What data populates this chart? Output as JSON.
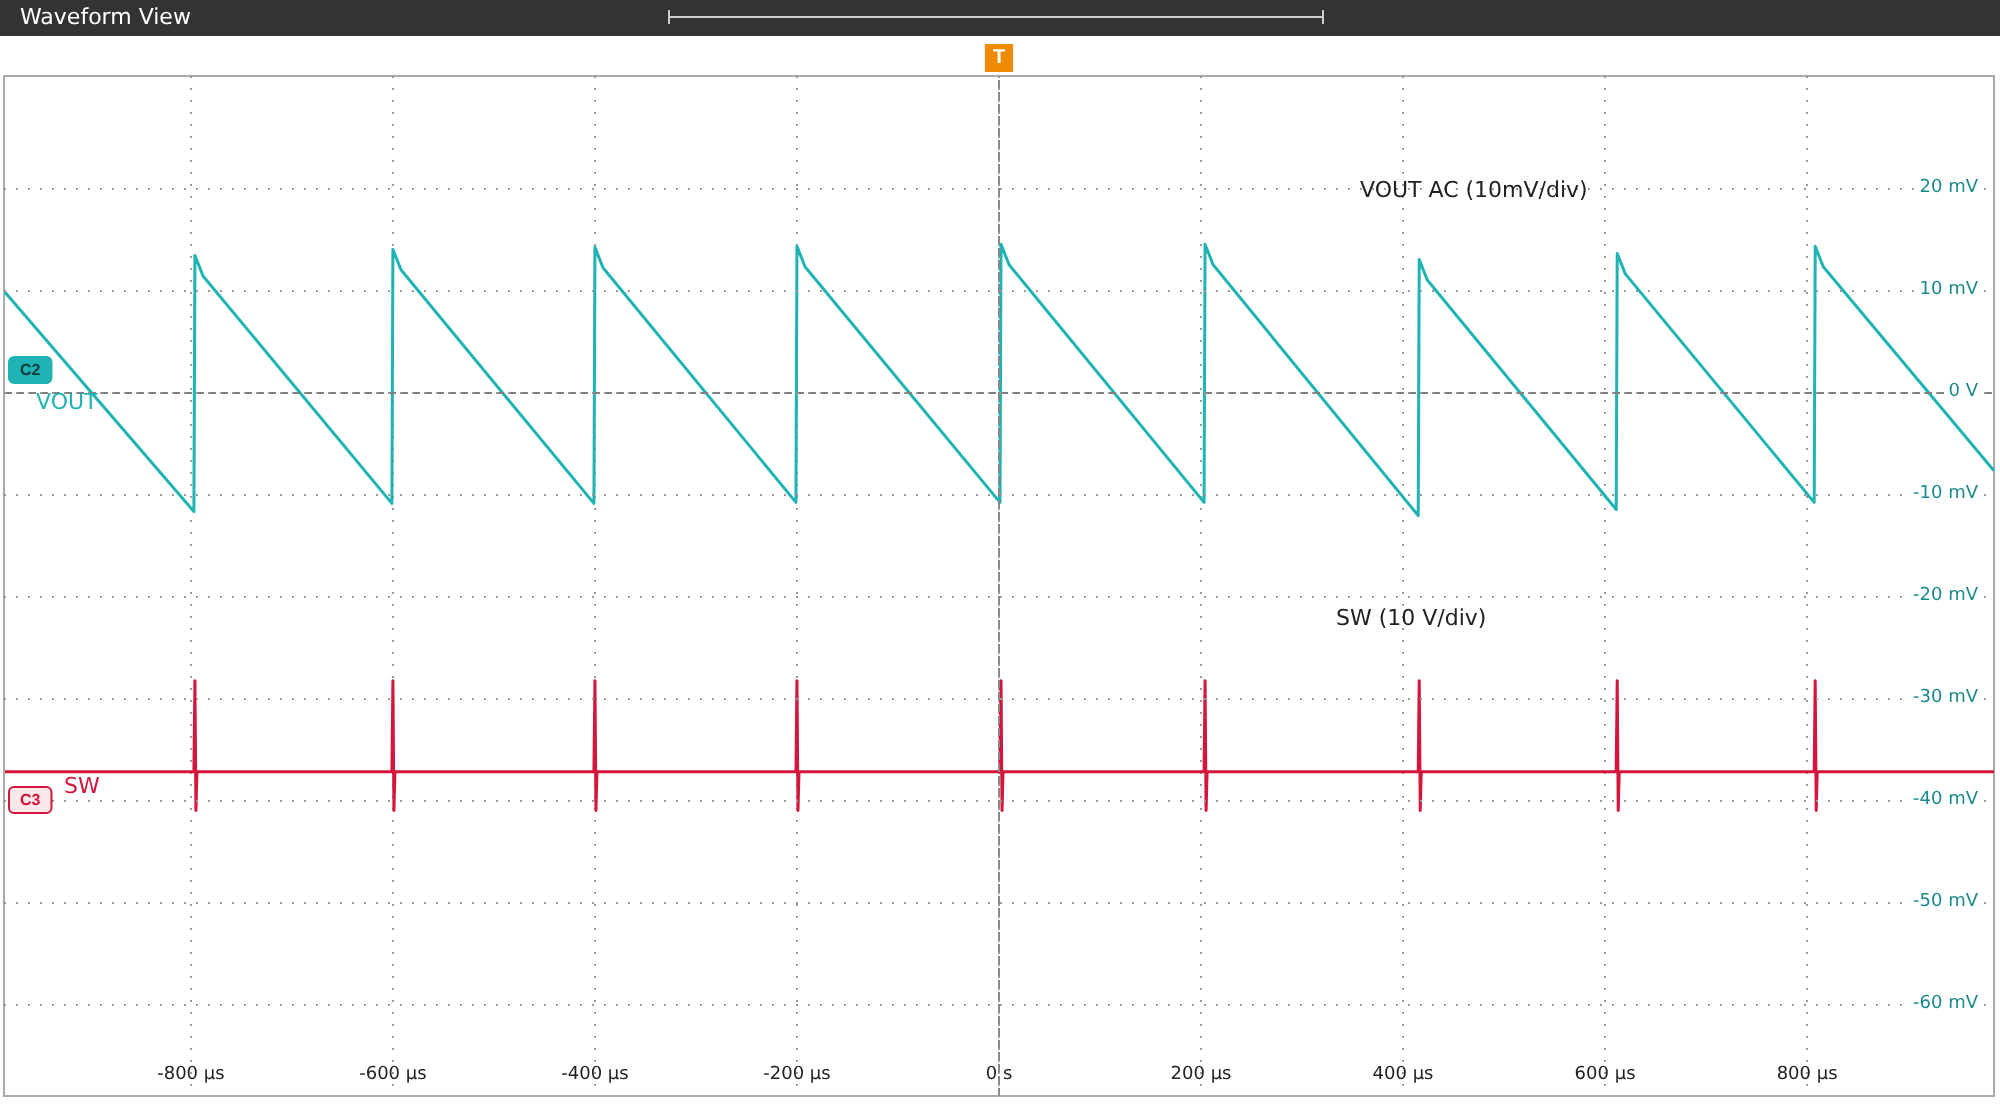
{
  "chart_data": {
    "type": "line",
    "title": "Waveform View",
    "xlim": [
      -985,
      985
    ],
    "ylim": [
      -69,
      31
    ],
    "xticks": [
      {
        "value": -800,
        "label": "-800 µs"
      },
      {
        "value": -600,
        "label": "-600 µs"
      },
      {
        "value": -400,
        "label": "-400 µs"
      },
      {
        "value": -200,
        "label": "-200 µs"
      },
      {
        "value": 0,
        "label": "0 s"
      },
      {
        "value": 200,
        "label": "200 µs"
      },
      {
        "value": 400,
        "label": "400 µs"
      },
      {
        "value": 600,
        "label": "600 µs"
      },
      {
        "value": 800,
        "label": "800 µs"
      }
    ],
    "yticks": [
      {
        "value": 20,
        "label": "20 mV"
      },
      {
        "value": 10,
        "label": "10 mV"
      },
      {
        "value": 0,
        "label": "0 V"
      },
      {
        "value": -10,
        "label": "-10 mV"
      },
      {
        "value": -20,
        "label": "-20 mV"
      },
      {
        "value": -30,
        "label": "-30 mV"
      },
      {
        "value": -40,
        "label": "-40 mV"
      },
      {
        "value": -50,
        "label": "-50 mV"
      },
      {
        "value": -60,
        "label": "-60 mV"
      }
    ],
    "grid": true,
    "legend": "left",
    "marker": "none",
    "line_style": "solid",
    "series": [
      {
        "name": "VOUT",
        "color": "#1fb3b3",
        "x": [
          -984,
          -797,
          -796,
          -788,
          -601,
          -600,
          -592,
          -401,
          -400,
          -392,
          -201,
          -200,
          -192,
          1,
          2,
          10,
          203,
          204,
          212,
          415,
          416,
          424,
          611,
          612,
          620,
          807,
          808,
          816,
          985
        ],
        "values": [
          9.8,
          -11.7,
          13.4,
          11.4,
          -10.9,
          14.0,
          12.0,
          -10.9,
          14.2,
          12.2,
          -10.8,
          14.3,
          12.3,
          -10.8,
          14.5,
          12.5,
          -10.8,
          14.5,
          12.5,
          -12.1,
          13.0,
          11.0,
          -11.5,
          13.6,
          11.6,
          -10.8,
          14.3,
          12.3,
          -7.7
        ]
      },
      {
        "name": "SW",
        "color": "#d4163c",
        "x": [
          -984,
          -797,
          -796,
          -795,
          -794,
          -601,
          -600,
          -599,
          -598,
          -401,
          -400,
          -399,
          -398,
          -201,
          -200,
          -199,
          -198,
          1,
          2,
          3,
          4,
          203,
          204,
          205,
          206,
          415,
          416,
          417,
          418,
          611,
          612,
          613,
          614,
          807,
          808,
          809,
          810,
          985
        ],
        "values": [
          -37.2,
          -37.2,
          -28.3,
          -41,
          -37.2,
          -37.2,
          -28.3,
          -41,
          -37.2,
          -37.2,
          -28.3,
          -41,
          -37.2,
          -37.2,
          -28.3,
          -41,
          -37.2,
          -37.2,
          -28.3,
          -41,
          -37.2,
          -37.2,
          -28.3,
          -41,
          -37.2,
          -37.2,
          -28.3,
          -41,
          -37.2,
          -37.2,
          -28.3,
          -41,
          -37.2,
          -37.2,
          -28.3,
          -41,
          -37.2,
          -37.2
        ]
      }
    ],
    "ref_lines": [
      {
        "axis": "x",
        "value": 0,
        "label": "T",
        "color": "#888888",
        "line_style": "dashed"
      },
      {
        "axis": "y",
        "value": 0,
        "label": null,
        "color": "#808080",
        "line_style": "dashed"
      }
    ],
    "annotations": [
      "VOUT AC (10mV/div)",
      "SW (10 V/div)",
      "C2",
      "C3"
    ]
  }
}
